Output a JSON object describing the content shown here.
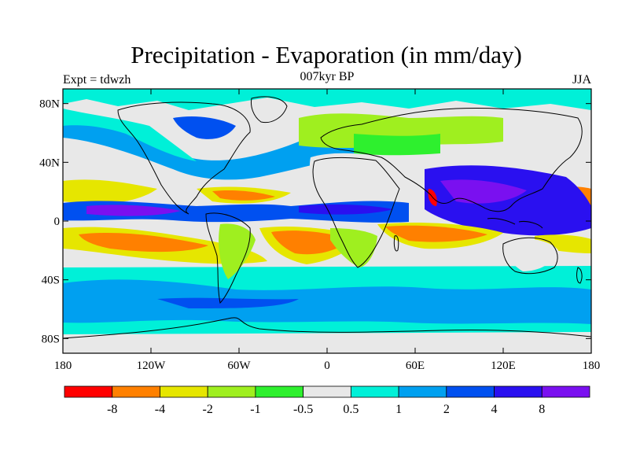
{
  "title": "Precipitation - Evaporation (in mm/day)",
  "subtitle": "007kyr BP",
  "left_label": "Expt = tdwzh",
  "right_label": "JJA",
  "map": {
    "projection": "cylindrical-equidistant",
    "lon_range": [
      -180,
      180
    ],
    "lat_range": [
      -90,
      90
    ],
    "lat_ticks": [
      {
        "value": 80,
        "label": "80N"
      },
      {
        "value": 40,
        "label": "40N"
      },
      {
        "value": 0,
        "label": "0"
      },
      {
        "value": -40,
        "label": "40S"
      },
      {
        "value": -80,
        "label": "80S"
      }
    ],
    "lon_ticks": [
      {
        "value": -180,
        "label": "180"
      },
      {
        "value": -120,
        "label": "120W"
      },
      {
        "value": -60,
        "label": "60W"
      },
      {
        "value": 0,
        "label": "0"
      },
      {
        "value": 60,
        "label": "60E"
      },
      {
        "value": 120,
        "label": "120E"
      },
      {
        "value": 180,
        "label": "180"
      }
    ]
  },
  "colorbar": {
    "colors": [
      "#ff0000",
      "#ff8000",
      "#e6e600",
      "#9fef1f",
      "#2ef02e",
      "#e8e8e8",
      "#00f0d8",
      "#00a0f0",
      "#0050f0",
      "#2a10f0",
      "#7a10f0"
    ],
    "labels": [
      "-8",
      "-4",
      "-2",
      "-1",
      "-0.5",
      "0.5",
      "1",
      "2",
      "4",
      "8"
    ]
  }
}
